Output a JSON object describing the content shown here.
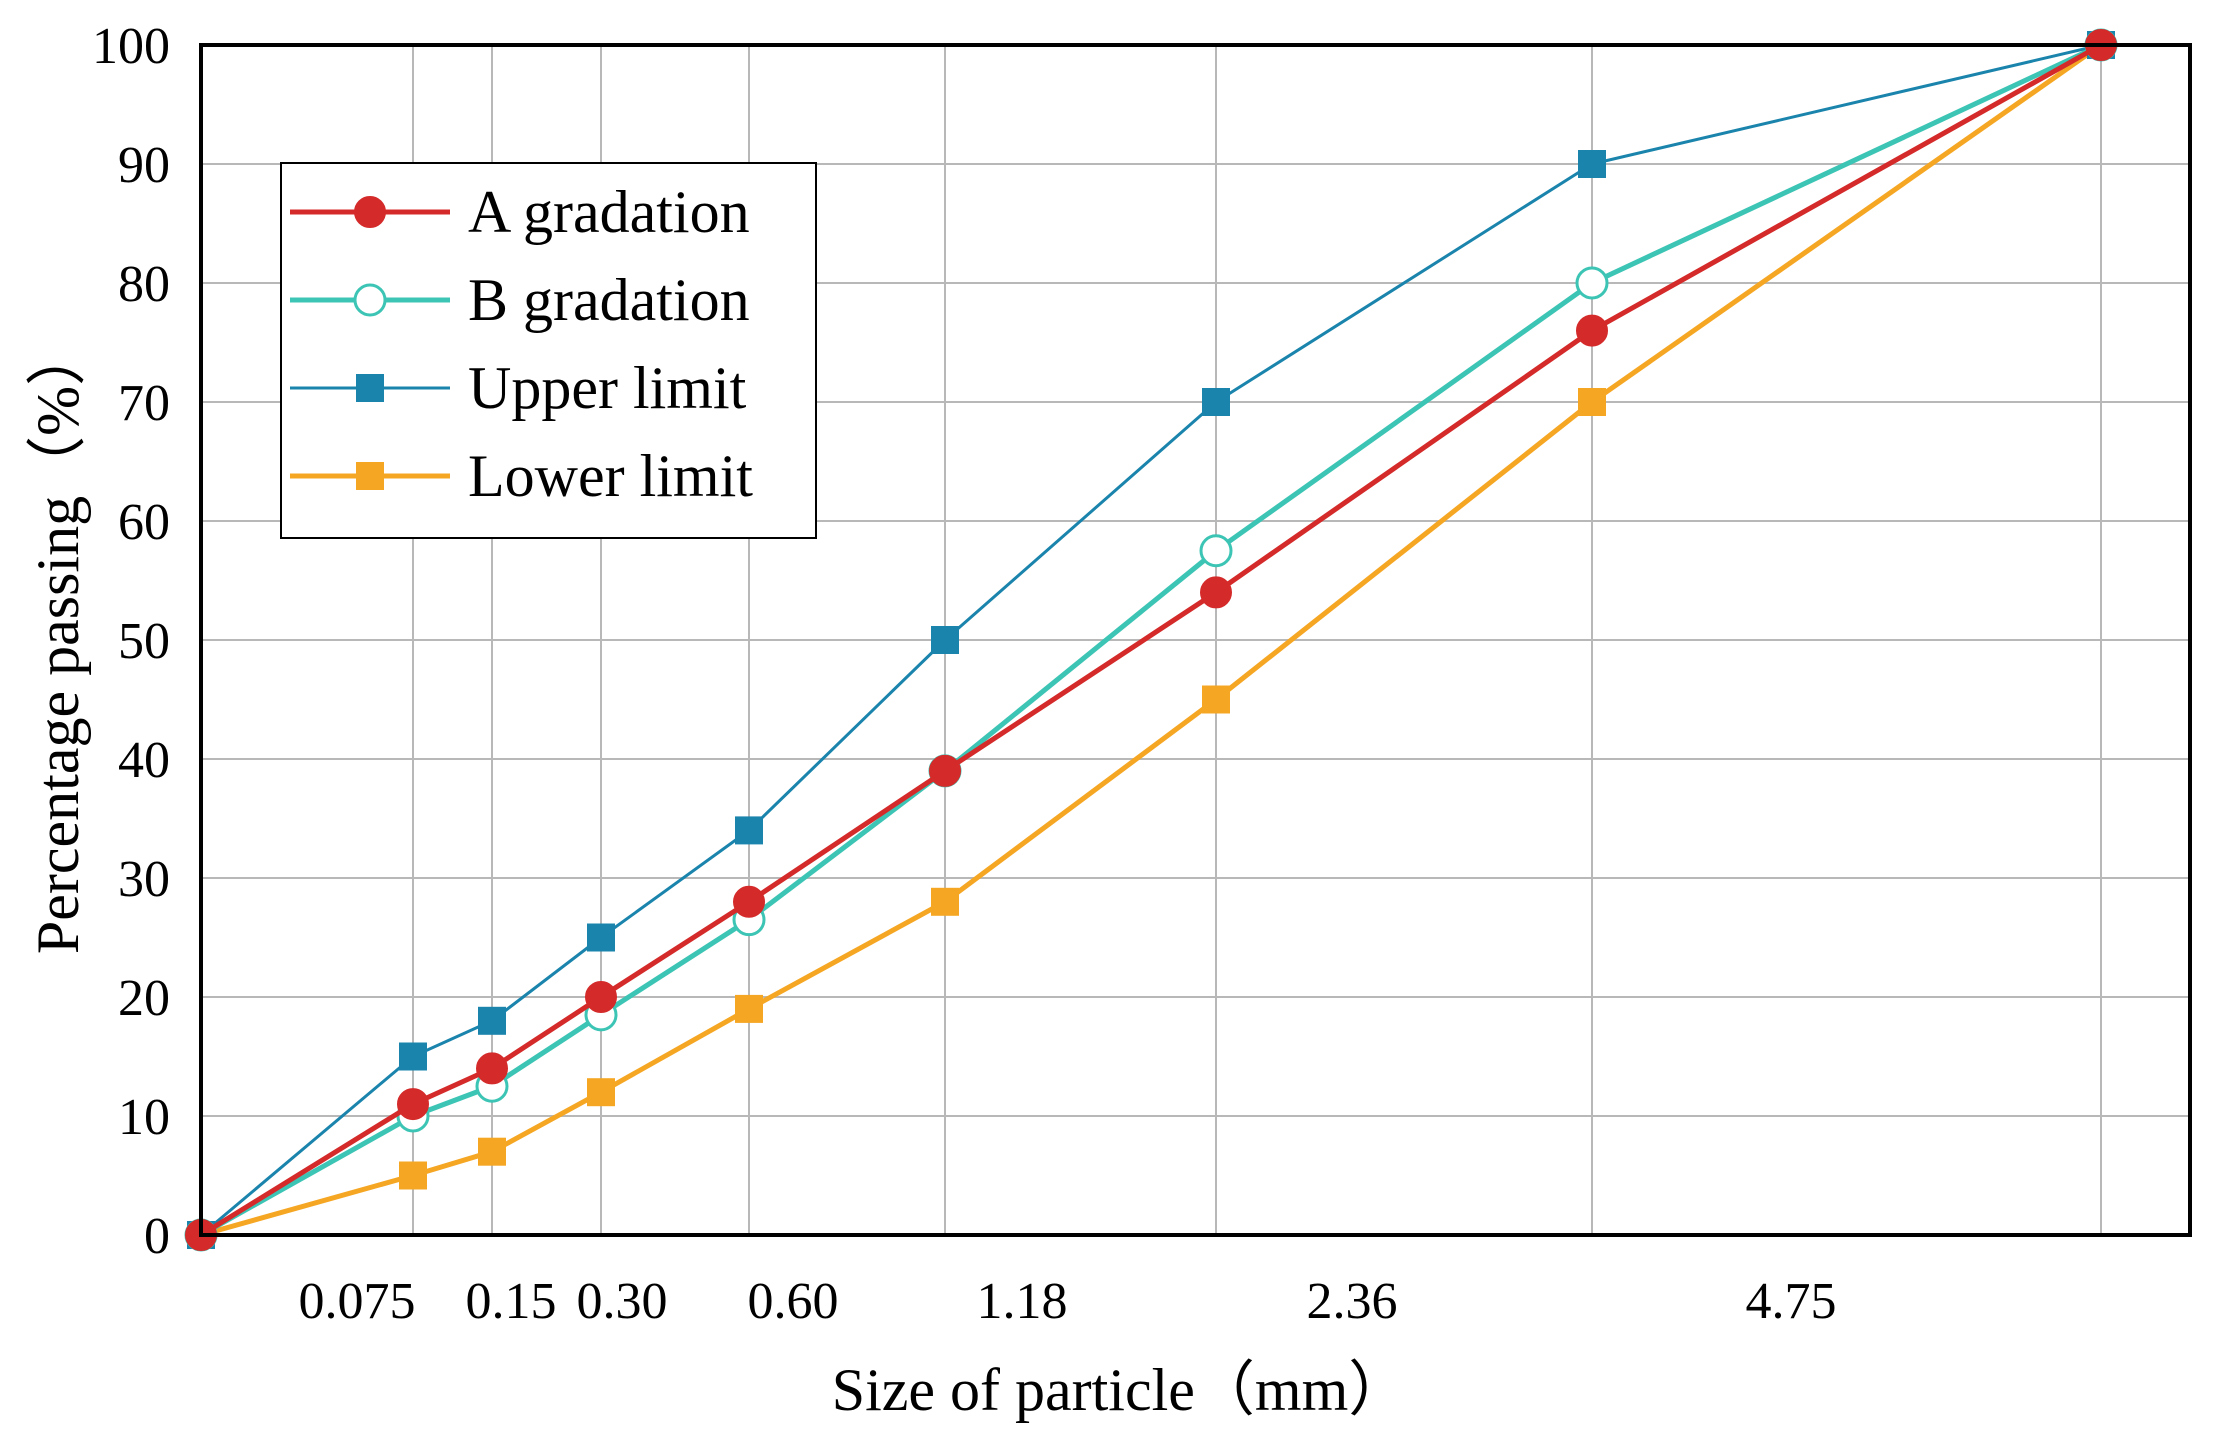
{
  "chart_data": {
    "type": "line",
    "title": "",
    "xlabel": "Size of  particle（mm）",
    "ylabel": "Percentage passing（%）",
    "ylim": [
      0,
      100
    ],
    "yticks": [
      0,
      10,
      20,
      30,
      40,
      50,
      60,
      70,
      80,
      90,
      100
    ],
    "x_index": [
      0,
      1,
      2,
      3,
      4,
      5,
      6,
      7,
      8
    ],
    "xtick_labels": [
      "",
      "0.075",
      "0.15",
      "0.30",
      "0.60",
      "1.18",
      "2.36",
      "4.75",
      ""
    ],
    "grid": true,
    "legend_position": "top-left",
    "series": [
      {
        "name": "A gradation",
        "color": "#d42a2a",
        "marker": "filled-circle",
        "values": [
          0,
          11,
          14,
          20,
          28,
          39,
          54,
          76,
          100
        ]
      },
      {
        "name": "B gradation",
        "color": "#3cc4b4",
        "marker": "open-circle",
        "values": [
          0,
          10,
          12.5,
          18.5,
          26.5,
          39,
          57.5,
          80,
          100
        ]
      },
      {
        "name": "Upper limit",
        "color": "#1a84ac",
        "marker": "square",
        "values": [
          0,
          15,
          18,
          25,
          34,
          50,
          70,
          90,
          100
        ]
      },
      {
        "name": "Lower limit",
        "color": "#f5a623",
        "marker": "square",
        "values": [
          0,
          5,
          7,
          12,
          19,
          28,
          45,
          70,
          100
        ]
      }
    ]
  }
}
